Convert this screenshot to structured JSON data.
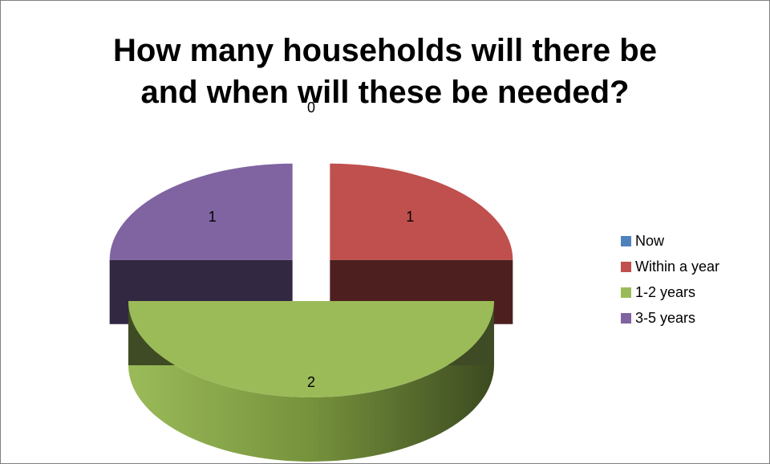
{
  "chart_data": {
    "type": "pie",
    "title_lines": [
      "How many households will there be",
      "and when will these be needed?"
    ],
    "categories": [
      "Now",
      "Within a year",
      "1-2 years",
      "3-5 years"
    ],
    "values": [
      0,
      1,
      2,
      1
    ],
    "data_labels": [
      "0",
      "1",
      "2",
      "1"
    ],
    "colors": [
      "#4f81bd",
      "#c0504d",
      "#9bbb59",
      "#8064a2"
    ],
    "style": "3d-exploded",
    "legend_position": "right"
  }
}
